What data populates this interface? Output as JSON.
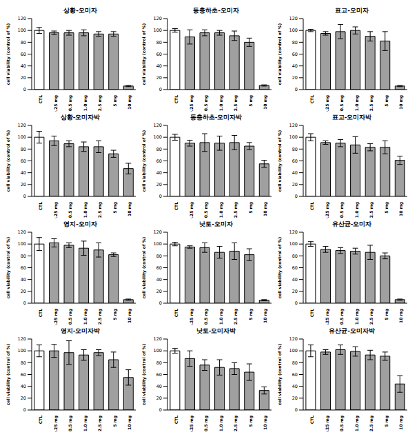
{
  "chart_data": [
    {
      "type": "bar",
      "title": "상황-오미자",
      "y_label": "cell viability (control of %)",
      "categories": [
        "CTL",
        "0.25 mg",
        "0.5 mg",
        "1.0 mg",
        "2.5 mg",
        "5 mg",
        "10 mg"
      ],
      "values": [
        100,
        96,
        96,
        96,
        94,
        94,
        6
      ],
      "errors": [
        5,
        3,
        4,
        5,
        4,
        4,
        1
      ],
      "colors": [
        "#ffffff",
        "#a0a0a0",
        "#a0a0a0",
        "#a0a0a0",
        "#a0a0a0",
        "#a0a0a0",
        "#a0a0a0"
      ],
      "ylim": [
        0,
        120
      ],
      "yticks": [
        0,
        20,
        40,
        60,
        80,
        100,
        120
      ],
      "grid": false
    },
    {
      "type": "bar",
      "title": "동충하초-오미자",
      "y_label": "cell viability (control of %)",
      "categories": [
        "CTL",
        "0.25 mg",
        "0.5 mg",
        "1.0 mg",
        "2.5 mg",
        "5 mg",
        "10 mg"
      ],
      "values": [
        100,
        89,
        96,
        96,
        91,
        80,
        7
      ],
      "errors": [
        3,
        12,
        5,
        4,
        8,
        7,
        1
      ],
      "colors": [
        "#ffffff",
        "#a0a0a0",
        "#a0a0a0",
        "#a0a0a0",
        "#a0a0a0",
        "#a0a0a0",
        "#a0a0a0"
      ],
      "ylim": [
        0,
        120
      ],
      "yticks": [
        0,
        20,
        40,
        60,
        80,
        100,
        120
      ],
      "grid": false
    },
    {
      "type": "bar",
      "title": "표고-오미자",
      "y_label": "cell viability (control of %)",
      "categories": [
        "CTL",
        "0.25 mg",
        "0.5 mg",
        "1.0 mg",
        "2.5 mg",
        "5 mg",
        "10 mg"
      ],
      "values": [
        100,
        95,
        98,
        100,
        90,
        82,
        6
      ],
      "errors": [
        2,
        3,
        12,
        6,
        8,
        16,
        1
      ],
      "colors": [
        "#ffffff",
        "#a0a0a0",
        "#a0a0a0",
        "#a0a0a0",
        "#a0a0a0",
        "#a0a0a0",
        "#a0a0a0"
      ],
      "ylim": [
        0,
        120
      ],
      "yticks": [
        0,
        20,
        40,
        60,
        80,
        100,
        120
      ],
      "grid": false
    },
    {
      "type": "bar",
      "title": "상황-오미자박",
      "y_label": "cell viability (control of %)",
      "categories": [
        "CTL",
        "0.25 mg",
        "0.5 mg",
        "1.0 mg",
        "2.5 mg",
        "5 mg",
        "10 mg"
      ],
      "values": [
        100,
        94,
        89,
        84,
        84,
        72,
        47
      ],
      "errors": [
        10,
        8,
        5,
        8,
        10,
        6,
        9
      ],
      "colors": [
        "#ffffff",
        "#a0a0a0",
        "#a0a0a0",
        "#a0a0a0",
        "#a0a0a0",
        "#a0a0a0",
        "#a0a0a0"
      ],
      "ylim": [
        0,
        120
      ],
      "yticks": [
        0,
        20,
        40,
        60,
        80,
        100,
        120
      ],
      "grid": false
    },
    {
      "type": "bar",
      "title": "동충하초-오미자박",
      "y_label": "cell viability (control of %)",
      "categories": [
        "CTL",
        "0.25 mg",
        "0.5 mg",
        "1.0 mg",
        "2.5 mg",
        "5 mg",
        "10 mg"
      ],
      "values": [
        100,
        90,
        91,
        90,
        91,
        85,
        55
      ],
      "errors": [
        5,
        5,
        15,
        12,
        12,
        6,
        6
      ],
      "colors": [
        "#ffffff",
        "#a0a0a0",
        "#a0a0a0",
        "#a0a0a0",
        "#a0a0a0",
        "#a0a0a0",
        "#a0a0a0"
      ],
      "ylim": [
        0,
        120
      ],
      "yticks": [
        0,
        20,
        40,
        60,
        80,
        100,
        120
      ],
      "grid": false
    },
    {
      "type": "bar",
      "title": "표고-오미자박",
      "y_label": "cell viability (control of %)",
      "categories": [
        "CTL",
        "0.25 mg",
        "0.5 mg",
        "1.0 mg",
        "2.5 mg",
        "5 mg",
        "10 mg"
      ],
      "values": [
        100,
        91,
        90,
        87,
        83,
        83,
        61
      ],
      "errors": [
        6,
        3,
        6,
        14,
        6,
        11,
        7
      ],
      "colors": [
        "#ffffff",
        "#a0a0a0",
        "#a0a0a0",
        "#a0a0a0",
        "#a0a0a0",
        "#a0a0a0",
        "#a0a0a0"
      ],
      "ylim": [
        0,
        120
      ],
      "yticks": [
        0,
        20,
        40,
        60,
        80,
        100,
        120
      ],
      "grid": false
    },
    {
      "type": "bar",
      "title": "영지-오미자",
      "y_label": "cell viability (control of %)",
      "categories": [
        "CTL",
        "0.25 mg",
        "0.5 mg",
        "1.0 mg",
        "2.5 mg",
        "5 mg",
        "10 mg"
      ],
      "values": [
        100,
        102,
        98,
        93,
        90,
        82,
        6
      ],
      "errors": [
        11,
        7,
        4,
        12,
        12,
        3,
        1
      ],
      "colors": [
        "#ffffff",
        "#a0a0a0",
        "#a0a0a0",
        "#a0a0a0",
        "#a0a0a0",
        "#a0a0a0",
        "#a0a0a0"
      ],
      "ylim": [
        0,
        120
      ],
      "yticks": [
        0,
        20,
        40,
        60,
        80,
        100,
        120
      ],
      "grid": false
    },
    {
      "type": "bar",
      "title": "낫토-오미자",
      "y_label": "cell viability (control of %)",
      "categories": [
        "CTL",
        "0.25 mg",
        "0.5 mg",
        "1.0 mg",
        "2.5 mg",
        "5 mg",
        "10 mg"
      ],
      "values": [
        100,
        95,
        94,
        86,
        88,
        82,
        5
      ],
      "errors": [
        3,
        2,
        8,
        10,
        14,
        10,
        1
      ],
      "colors": [
        "#ffffff",
        "#a0a0a0",
        "#a0a0a0",
        "#a0a0a0",
        "#a0a0a0",
        "#a0a0a0",
        "#a0a0a0"
      ],
      "ylim": [
        0,
        120
      ],
      "yticks": [
        0,
        20,
        40,
        60,
        80,
        100,
        120
      ],
      "grid": false
    },
    {
      "type": "bar",
      "title": "유산균-오미자",
      "y_label": "cell viability (control of %)",
      "categories": [
        "CTL",
        "0.25 mg",
        "0.5 mg",
        "1.0 mg",
        "2.5 mg",
        "5 mg",
        "10 mg"
      ],
      "values": [
        100,
        91,
        89,
        88,
        86,
        80,
        6
      ],
      "errors": [
        4,
        5,
        5,
        5,
        12,
        5,
        1
      ],
      "colors": [
        "#ffffff",
        "#a0a0a0",
        "#a0a0a0",
        "#a0a0a0",
        "#a0a0a0",
        "#a0a0a0",
        "#a0a0a0"
      ],
      "ylim": [
        0,
        120
      ],
      "yticks": [
        0,
        20,
        40,
        60,
        80,
        100,
        120
      ],
      "grid": false
    },
    {
      "type": "bar",
      "title": "영지-오미자박",
      "y_label": "cell viability (control of %)",
      "categories": [
        "CTL",
        "0.25 mg",
        "0.5 mg",
        "1.0 mg",
        "2.5 mg",
        "5 mg",
        "10 mg"
      ],
      "values": [
        100,
        100,
        97,
        93,
        97,
        85,
        55
      ],
      "errors": [
        10,
        11,
        20,
        9,
        5,
        13,
        13
      ],
      "colors": [
        "#ffffff",
        "#a0a0a0",
        "#a0a0a0",
        "#a0a0a0",
        "#a0a0a0",
        "#a0a0a0",
        "#a0a0a0"
      ],
      "ylim": [
        0,
        120
      ],
      "yticks": [
        0,
        20,
        40,
        60,
        80,
        100,
        120
      ],
      "grid": false
    },
    {
      "type": "bar",
      "title": "낫토-오미자박",
      "y_label": "cell viability (control of %)",
      "categories": [
        "CTL",
        "0.25 mg",
        "0.5 mg",
        "1.0 mg",
        "2.5 mg",
        "5 mg",
        "10 mg"
      ],
      "values": [
        100,
        87,
        76,
        72,
        70,
        64,
        33
      ],
      "errors": [
        4,
        13,
        9,
        13,
        10,
        14,
        6
      ],
      "colors": [
        "#ffffff",
        "#a0a0a0",
        "#a0a0a0",
        "#a0a0a0",
        "#a0a0a0",
        "#a0a0a0",
        "#a0a0a0"
      ],
      "ylim": [
        0,
        120
      ],
      "yticks": [
        0,
        20,
        40,
        60,
        80,
        100,
        120
      ],
      "grid": false
    },
    {
      "type": "bar",
      "title": "유산균-오미자박",
      "y_label": "cell viability (control of %)",
      "categories": [
        "CTL",
        "0.25 mg",
        "0.5 mg",
        "1.0 mg",
        "2.5 mg",
        "5 mg",
        "10 mg"
      ],
      "values": [
        100,
        98,
        102,
        99,
        93,
        91,
        44
      ],
      "errors": [
        10,
        4,
        8,
        8,
        8,
        7,
        14
      ],
      "colors": [
        "#ffffff",
        "#a0a0a0",
        "#a0a0a0",
        "#a0a0a0",
        "#a0a0a0",
        "#a0a0a0",
        "#a0a0a0"
      ],
      "ylim": [
        0,
        120
      ],
      "yticks": [
        0,
        20,
        40,
        60,
        80,
        100,
        120
      ],
      "grid": false
    }
  ]
}
